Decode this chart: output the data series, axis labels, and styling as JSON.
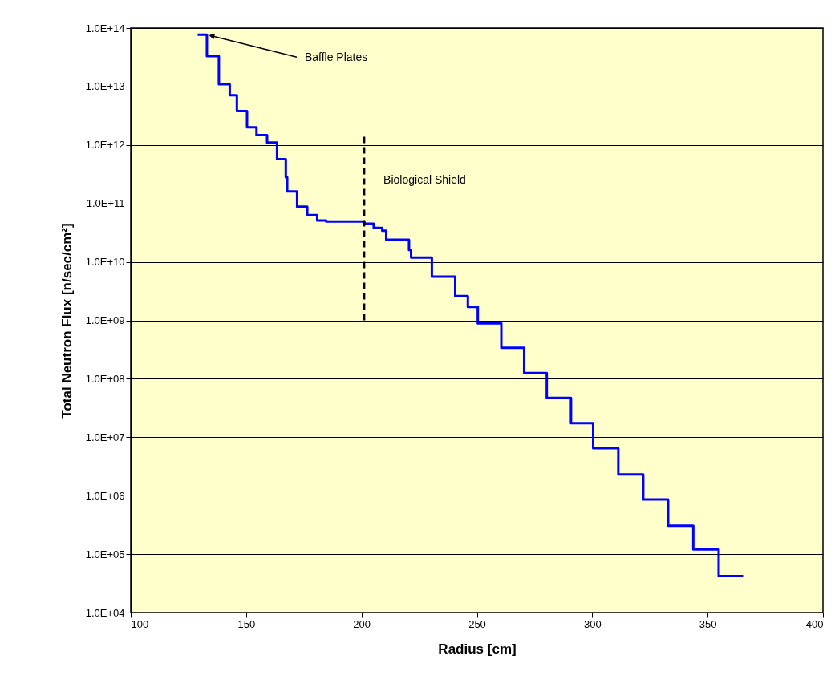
{
  "chart_data": {
    "type": "step",
    "xlabel": "Radius [cm]",
    "ylabel": "Total Neutron Flux [n/sec/cm²]",
    "log": "y",
    "grid": "y",
    "legend": false,
    "marker": "none",
    "xlim": [
      100,
      400
    ],
    "xticks": [
      100,
      150,
      200,
      250,
      300,
      350,
      400
    ],
    "ylim": [
      10000.0,
      100000000000000.0
    ],
    "yticks": [
      {
        "value": 10000.0,
        "label": "1.0E+04"
      },
      {
        "value": 100000.0,
        "label": "1.0E+05"
      },
      {
        "value": 1000000.0,
        "label": "1.0E+06"
      },
      {
        "value": 10000000.0,
        "label": "1.0E+07"
      },
      {
        "value": 100000000.0,
        "label": "1.0E+08"
      },
      {
        "value": 1000000000.0,
        "label": "1.0E+09"
      },
      {
        "value": 10000000000.0,
        "label": "1.0E+10"
      },
      {
        "value": 100000000000.0,
        "label": "1.0E+11"
      },
      {
        "value": 1000000000000.0,
        "label": "1.0E+12"
      },
      {
        "value": 10000000000000.0,
        "label": "1.0E+13"
      },
      {
        "value": 100000000000000.0,
        "label": "1.0E+14"
      }
    ],
    "series": [
      {
        "color": "#0000ff",
        "line_style": "solid",
        "x": [
          129,
          133,
          138.2,
          142.9,
          146,
          150.4,
          154.5,
          159.1,
          163.4,
          167.2,
          167.8,
          172.1,
          176.5,
          180.8,
          184.7,
          201.2,
          205.3,
          209,
          210.7,
          220.6,
          221.5,
          230.5,
          240.6,
          246.1,
          250.4,
          260.6,
          270.5,
          280.3,
          290.8,
          300.4,
          311.3,
          322.1,
          332.9,
          343.8,
          354.8,
          365.4
        ],
        "values": [
          77000000000000.0,
          33000000000000.0,
          11000000000000.0,
          7100000000000.0,
          3800000000000.0,
          2000000000000.0,
          1470000000000.0,
          1100000000000.0,
          570000000000.0,
          280000000000.0,
          160000000000.0,
          88000000000.0,
          63000000000.0,
          51000000000.0,
          49000000000.0,
          45000000000.0,
          38000000000.0,
          34000000000.0,
          24000000000.0,
          16000000000.0,
          11800000000.0,
          5600000000.0,
          2600000000.0,
          1700000000.0,
          890000000.0,
          340000000.0,
          125000000.0,
          47000000.0,
          17400000.0,
          6500000.0,
          2300000.0,
          860000.0,
          305000.0,
          120000.0,
          42000.0,
          42000.0
        ]
      },
      {
        "type": "line",
        "color": "#000000",
        "line_style": "dashed",
        "x": [
          201.2,
          201.2
        ],
        "values": [
          1000000000.0,
          1400000000000.0
        ]
      }
    ],
    "annotations": [
      {
        "text": "Baffle Plates",
        "x": 133,
        "y": 77000000000000.0
      },
      {
        "text": "Biological Shield",
        "x": 201.2,
        "y": 250000000000.0
      }
    ]
  }
}
